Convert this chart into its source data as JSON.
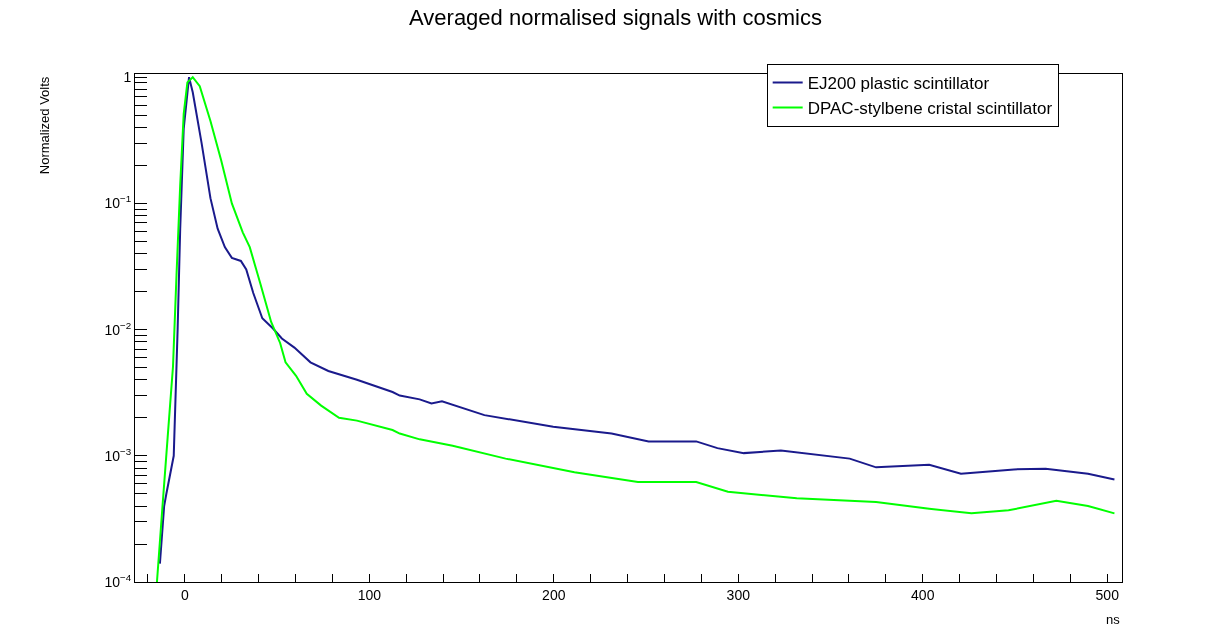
{
  "chart_data": {
    "type": "line",
    "title": "Averaged normalised signals with cosmics",
    "xlabel": "ns",
    "ylabel": "Normalized Volts",
    "log": "y",
    "grid": false,
    "legend": "top right",
    "marker": "none",
    "line_style": "solid",
    "xlim": [
      -27,
      508
    ],
    "ylim": [
      0.0001,
      1.06
    ],
    "xticks": [
      {
        "value": -20,
        "label": null
      },
      0,
      {
        "value": 20,
        "label": null
      },
      {
        "value": 40,
        "label": null
      },
      {
        "value": 60,
        "label": null
      },
      {
        "value": 80,
        "label": null
      },
      100,
      {
        "value": 120,
        "label": null
      },
      {
        "value": 140,
        "label": null
      },
      {
        "value": 160,
        "label": null
      },
      {
        "value": 180,
        "label": null
      },
      200,
      {
        "value": 220,
        "label": null
      },
      {
        "value": 240,
        "label": null
      },
      {
        "value": 260,
        "label": null
      },
      {
        "value": 280,
        "label": null
      },
      300,
      {
        "value": 320,
        "label": null
      },
      {
        "value": 340,
        "label": null
      },
      {
        "value": 360,
        "label": null
      },
      {
        "value": 380,
        "label": null
      },
      400,
      {
        "value": 420,
        "label": null
      },
      {
        "value": 440,
        "label": null
      },
      {
        "value": 460,
        "label": null
      },
      {
        "value": 480,
        "label": null
      },
      500
    ],
    "yticks": [
      {
        "value": 0.0001,
        "label": "10$^{−4}$"
      },
      {
        "value": 0.0002,
        "label": null
      },
      {
        "value": 0.0003,
        "label": null
      },
      {
        "value": 0.0004,
        "label": null
      },
      {
        "value": 0.0005,
        "label": null
      },
      {
        "value": 0.0006,
        "label": null
      },
      {
        "value": 0.0007,
        "label": null
      },
      {
        "value": 0.0008,
        "label": null
      },
      {
        "value": 0.0009,
        "label": null
      },
      {
        "value": 0.001,
        "label": "10$^{−3}$"
      },
      {
        "value": 0.002,
        "label": null
      },
      {
        "value": 0.003,
        "label": null
      },
      {
        "value": 0.004,
        "label": null
      },
      {
        "value": 0.005,
        "label": null
      },
      {
        "value": 0.006,
        "label": null
      },
      {
        "value": 0.007,
        "label": null
      },
      {
        "value": 0.008,
        "label": null
      },
      {
        "value": 0.009,
        "label": null
      },
      {
        "value": 0.01,
        "label": "10$^{−2}$"
      },
      {
        "value": 0.02,
        "label": null
      },
      {
        "value": 0.03,
        "label": null
      },
      {
        "value": 0.04,
        "label": null
      },
      {
        "value": 0.05,
        "label": null
      },
      {
        "value": 0.06,
        "label": null
      },
      {
        "value": 0.07,
        "label": null
      },
      {
        "value": 0.08,
        "label": null
      },
      {
        "value": 0.09,
        "label": null
      },
      {
        "value": 0.1,
        "label": "10$^{−1}$"
      },
      {
        "value": 0.2,
        "label": null
      },
      {
        "value": 0.3,
        "label": null
      },
      {
        "value": 0.4,
        "label": null
      },
      {
        "value": 0.5,
        "label": null
      },
      {
        "value": 0.6,
        "label": null
      },
      {
        "value": 0.7,
        "label": null
      },
      {
        "value": 0.8,
        "label": null
      },
      {
        "value": 0.9,
        "label": null
      },
      1
    ],
    "series": [
      {
        "name": "EJ200 plastic scintillator",
        "color": "#1a1a8c",
        "x": [
          -13.5,
          -11.2,
          -10,
          -6,
          -3.9,
          -2.5,
          -0.6,
          2.3,
          4.3,
          9.1,
          13.9,
          17.8,
          21.7,
          25.5,
          30.4,
          33.3,
          37.1,
          42,
          47.8,
          52.6,
          59.4,
          68.1,
          77.8,
          93.3,
          112.6,
          116.5,
          127.3,
          133.7,
          139.4,
          162.4,
          199.7,
          231.3,
          251.4,
          277.2,
          288.7,
          303,
          323.1,
          360.4,
          374.7,
          403.5,
          420.7,
          449.4,
          466.6,
          489.6,
          503.9
        ],
        "values": [
          0.00014,
          0.0004,
          0.0005,
          0.001,
          0.01,
          0.063,
          0.39,
          1.0,
          0.76,
          0.3,
          0.11,
          0.063,
          0.045,
          0.037,
          0.035,
          0.03,
          0.0195,
          0.0123,
          0.0102,
          0.0085,
          0.0072,
          0.0055,
          0.0047,
          0.004,
          0.0032,
          0.003,
          0.0028,
          0.0026,
          0.0027,
          0.0021,
          0.0017,
          0.0015,
          0.0013,
          0.0013,
          0.00115,
          0.00105,
          0.0011,
          0.00095,
          0.00081,
          0.00085,
          0.00072,
          0.00078,
          0.00079,
          0.00072,
          0.00065
        ]
      },
      {
        "name": "DPAC-stylbene cristal scintillator",
        "color": "#00ff00",
        "x": [
          -15.1,
          -12.2,
          -9.3,
          -6.4,
          -4.5,
          -2.5,
          -0.6,
          1.4,
          4.3,
          8.1,
          13.9,
          19.7,
          25.5,
          31.4,
          35.2,
          41,
          46.8,
          51.7,
          54.6,
          60.3,
          66.1,
          73.9,
          83.6,
          93.3,
          112.6,
          116.5,
          127.3,
          145.2,
          173.9,
          211.2,
          245.6,
          277.2,
          294.4,
          331.7,
          374.7,
          403.5,
          426.4,
          446.5,
          472.4,
          489.6,
          503.9
        ],
        "values": [
          0.0001,
          0.00038,
          0.0014,
          0.0051,
          0.027,
          0.14,
          0.51,
          0.91,
          1.0,
          0.85,
          0.45,
          0.22,
          0.1,
          0.059,
          0.045,
          0.023,
          0.0115,
          0.0078,
          0.0055,
          0.0043,
          0.0031,
          0.0025,
          0.002,
          0.0019,
          0.0016,
          0.0015,
          0.00135,
          0.0012,
          0.00095,
          0.00074,
          0.00062,
          0.00062,
          0.00052,
          0.00046,
          0.00043,
          0.00038,
          0.00035,
          0.00037,
          0.00044,
          0.0004,
          0.00035
        ]
      }
    ]
  }
}
